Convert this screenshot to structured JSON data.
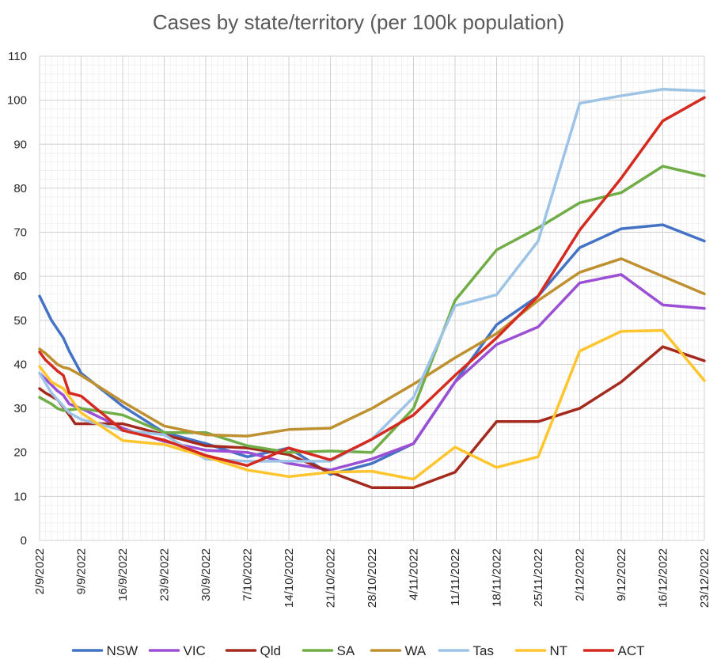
{
  "chart_data": {
    "type": "line",
    "title": "Cases by state/territory (per 100k population)",
    "xlabel": "",
    "ylabel": "",
    "ylim": [
      0,
      110
    ],
    "yticks": [
      0,
      10,
      20,
      30,
      40,
      50,
      60,
      70,
      80,
      90,
      100,
      110
    ],
    "x_start": "2/9/2022",
    "x_end": "23/12/2022",
    "xtick_labels": [
      "2/9/2022",
      "9/9/2022",
      "16/9/2022",
      "23/9/2022",
      "30/9/2022",
      "7/10/2022",
      "14/10/2022",
      "21/10/2022",
      "28/10/2022",
      "4/11/2022",
      "11/11/2022",
      "18/11/2022",
      "25/11/2022",
      "2/12/2022",
      "9/12/2022",
      "16/12/2022",
      "23/12/2022"
    ],
    "grid": true,
    "legend_position": "bottom",
    "series": [
      {
        "name": "NSW",
        "color": "#4472C4",
        "points": [
          [
            "2/9/2022",
            55.5
          ],
          [
            "4/9/2022",
            50
          ],
          [
            "6/9/2022",
            46
          ],
          [
            "7/9/2022",
            43
          ],
          [
            "9/9/2022",
            38
          ],
          [
            "16/9/2022",
            30.5
          ],
          [
            "23/9/2022",
            24.5
          ],
          [
            "30/9/2022",
            22
          ],
          [
            "7/10/2022",
            19
          ],
          [
            "14/10/2022",
            21
          ],
          [
            "21/10/2022",
            15
          ],
          [
            "28/10/2022",
            17.5
          ],
          [
            "4/11/2022",
            22
          ],
          [
            "11/11/2022",
            36
          ],
          [
            "18/11/2022",
            49
          ],
          [
            "25/11/2022",
            55.5
          ],
          [
            "2/12/2022",
            66.5
          ],
          [
            "9/12/2022",
            70.8
          ],
          [
            "16/12/2022",
            71.7
          ],
          [
            "23/12/2022",
            68
          ]
        ]
      },
      {
        "name": "VIC",
        "color": "#9B4FD4",
        "points": [
          [
            "2/9/2022",
            38
          ],
          [
            "5/9/2022",
            34
          ],
          [
            "6/9/2022",
            33
          ],
          [
            "7/9/2022",
            31
          ],
          [
            "9/9/2022",
            30
          ],
          [
            "16/9/2022",
            25.5
          ],
          [
            "23/9/2022",
            22.5
          ],
          [
            "30/9/2022",
            20.5
          ],
          [
            "7/10/2022",
            20
          ],
          [
            "14/10/2022",
            17.5
          ],
          [
            "21/10/2022",
            16
          ],
          [
            "28/10/2022",
            18.5
          ],
          [
            "4/11/2022",
            22
          ],
          [
            "11/11/2022",
            36
          ],
          [
            "18/11/2022",
            44.5
          ],
          [
            "25/11/2022",
            48.5
          ],
          [
            "2/12/2022",
            58.5
          ],
          [
            "9/12/2022",
            60.4
          ],
          [
            "16/12/2022",
            53.5
          ],
          [
            "23/12/2022",
            52.7
          ]
        ]
      },
      {
        "name": "Qld",
        "color": "#A52A1E",
        "points": [
          [
            "2/9/2022",
            34.5
          ],
          [
            "3/9/2022",
            33.5
          ],
          [
            "5/9/2022",
            32
          ],
          [
            "7/9/2022",
            28.5
          ],
          [
            "8/9/2022",
            26.5
          ],
          [
            "9/9/2022",
            26.5
          ],
          [
            "16/9/2022",
            26.5
          ],
          [
            "23/9/2022",
            24
          ],
          [
            "30/9/2022",
            21.5
          ],
          [
            "7/10/2022",
            21
          ],
          [
            "14/10/2022",
            19.5
          ],
          [
            "21/10/2022",
            15.5
          ],
          [
            "28/10/2022",
            12
          ],
          [
            "4/11/2022",
            12
          ],
          [
            "11/11/2022",
            15.5
          ],
          [
            "18/11/2022",
            27
          ],
          [
            "25/11/2022",
            27
          ],
          [
            "2/12/2022",
            30
          ],
          [
            "9/12/2022",
            36
          ],
          [
            "16/12/2022",
            44
          ],
          [
            "23/12/2022",
            40.8
          ]
        ]
      },
      {
        "name": "SA",
        "color": "#70AD47",
        "points": [
          [
            "2/9/2022",
            32.5
          ],
          [
            "4/9/2022",
            31
          ],
          [
            "5/9/2022",
            30
          ],
          [
            "6/9/2022",
            29.5
          ],
          [
            "9/9/2022",
            30
          ],
          [
            "16/9/2022",
            28.5
          ],
          [
            "23/9/2022",
            24.5
          ],
          [
            "30/9/2022",
            24.5
          ],
          [
            "7/10/2022",
            21.5
          ],
          [
            "14/10/2022",
            20
          ],
          [
            "21/10/2022",
            20.3
          ],
          [
            "28/10/2022",
            20
          ],
          [
            "4/11/2022",
            30
          ],
          [
            "11/11/2022",
            54.5
          ],
          [
            "18/11/2022",
            66
          ],
          [
            "25/11/2022",
            71
          ],
          [
            "2/12/2022",
            76.7
          ],
          [
            "9/12/2022",
            79
          ],
          [
            "16/12/2022",
            85
          ],
          [
            "23/12/2022",
            82.8
          ]
        ]
      },
      {
        "name": "WA",
        "color": "#BF9030",
        "points": [
          [
            "2/9/2022",
            43.5
          ],
          [
            "3/9/2022",
            42.5
          ],
          [
            "5/9/2022",
            40
          ],
          [
            "6/9/2022",
            39.3
          ],
          [
            "7/9/2022",
            39
          ],
          [
            "9/9/2022",
            37.5
          ],
          [
            "16/9/2022",
            31.5
          ],
          [
            "23/9/2022",
            26
          ],
          [
            "30/9/2022",
            24
          ],
          [
            "7/10/2022",
            23.7
          ],
          [
            "14/10/2022",
            25.2
          ],
          [
            "21/10/2022",
            25.5
          ],
          [
            "28/10/2022",
            30
          ],
          [
            "4/11/2022",
            35.5
          ],
          [
            "11/11/2022",
            41.5
          ],
          [
            "18/11/2022",
            47
          ],
          [
            "25/11/2022",
            54.5
          ],
          [
            "2/12/2022",
            60.9
          ],
          [
            "9/12/2022",
            64
          ],
          [
            "16/12/2022",
            60
          ],
          [
            "23/12/2022",
            56
          ]
        ]
      },
      {
        "name": "Tas",
        "color": "#9DC3E6",
        "points": [
          [
            "2/9/2022",
            38
          ],
          [
            "4/9/2022",
            33.5
          ],
          [
            "7/9/2022",
            29
          ],
          [
            "9/9/2022",
            27.5
          ],
          [
            "16/9/2022",
            25
          ],
          [
            "23/9/2022",
            24
          ],
          [
            "30/9/2022",
            18.5
          ],
          [
            "7/10/2022",
            18
          ],
          [
            "14/10/2022",
            18
          ],
          [
            "21/10/2022",
            18
          ],
          [
            "28/10/2022",
            23
          ],
          [
            "4/11/2022",
            32.5
          ],
          [
            "11/11/2022",
            53.3
          ],
          [
            "18/11/2022",
            55.8
          ],
          [
            "25/11/2022",
            68
          ],
          [
            "2/12/2022",
            99.3
          ],
          [
            "9/12/2022",
            101
          ],
          [
            "16/12/2022",
            102.5
          ],
          [
            "23/12/2022",
            102.1
          ]
        ]
      },
      {
        "name": "NT",
        "color": "#FFC52F",
        "points": [
          [
            "2/9/2022",
            39.5
          ],
          [
            "4/9/2022",
            36
          ],
          [
            "6/9/2022",
            34.5
          ],
          [
            "9/9/2022",
            29
          ],
          [
            "16/9/2022",
            22.7
          ],
          [
            "23/9/2022",
            21.8
          ],
          [
            "30/9/2022",
            19
          ],
          [
            "7/10/2022",
            16
          ],
          [
            "14/10/2022",
            14.5
          ],
          [
            "21/10/2022",
            15.5
          ],
          [
            "28/10/2022",
            15.7
          ],
          [
            "4/11/2022",
            13.9
          ],
          [
            "11/11/2022",
            21.2
          ],
          [
            "18/11/2022",
            16.6
          ],
          [
            "25/11/2022",
            19
          ],
          [
            "2/12/2022",
            43
          ],
          [
            "9/12/2022",
            47.5
          ],
          [
            "16/12/2022",
            47.7
          ],
          [
            "23/12/2022",
            36.3
          ]
        ]
      },
      {
        "name": "ACT",
        "color": "#D42A20",
        "points": [
          [
            "2/9/2022",
            42.8
          ],
          [
            "3/9/2022",
            41
          ],
          [
            "5/9/2022",
            38.5
          ],
          [
            "6/9/2022",
            37.5
          ],
          [
            "7/9/2022",
            33.5
          ],
          [
            "9/9/2022",
            32.8
          ],
          [
            "16/9/2022",
            25
          ],
          [
            "23/9/2022",
            22.8
          ],
          [
            "30/9/2022",
            19.3
          ],
          [
            "7/10/2022",
            17
          ],
          [
            "14/10/2022",
            21
          ],
          [
            "21/10/2022",
            18.3
          ],
          [
            "28/10/2022",
            23
          ],
          [
            "4/11/2022",
            28.5
          ],
          [
            "11/11/2022",
            37.5
          ],
          [
            "18/11/2022",
            46
          ],
          [
            "25/11/2022",
            55.5
          ],
          [
            "2/12/2022",
            70.5
          ],
          [
            "9/12/2022",
            82.3
          ],
          [
            "16/12/2022",
            95.3
          ],
          [
            "23/12/2022",
            100.6
          ]
        ]
      }
    ]
  }
}
